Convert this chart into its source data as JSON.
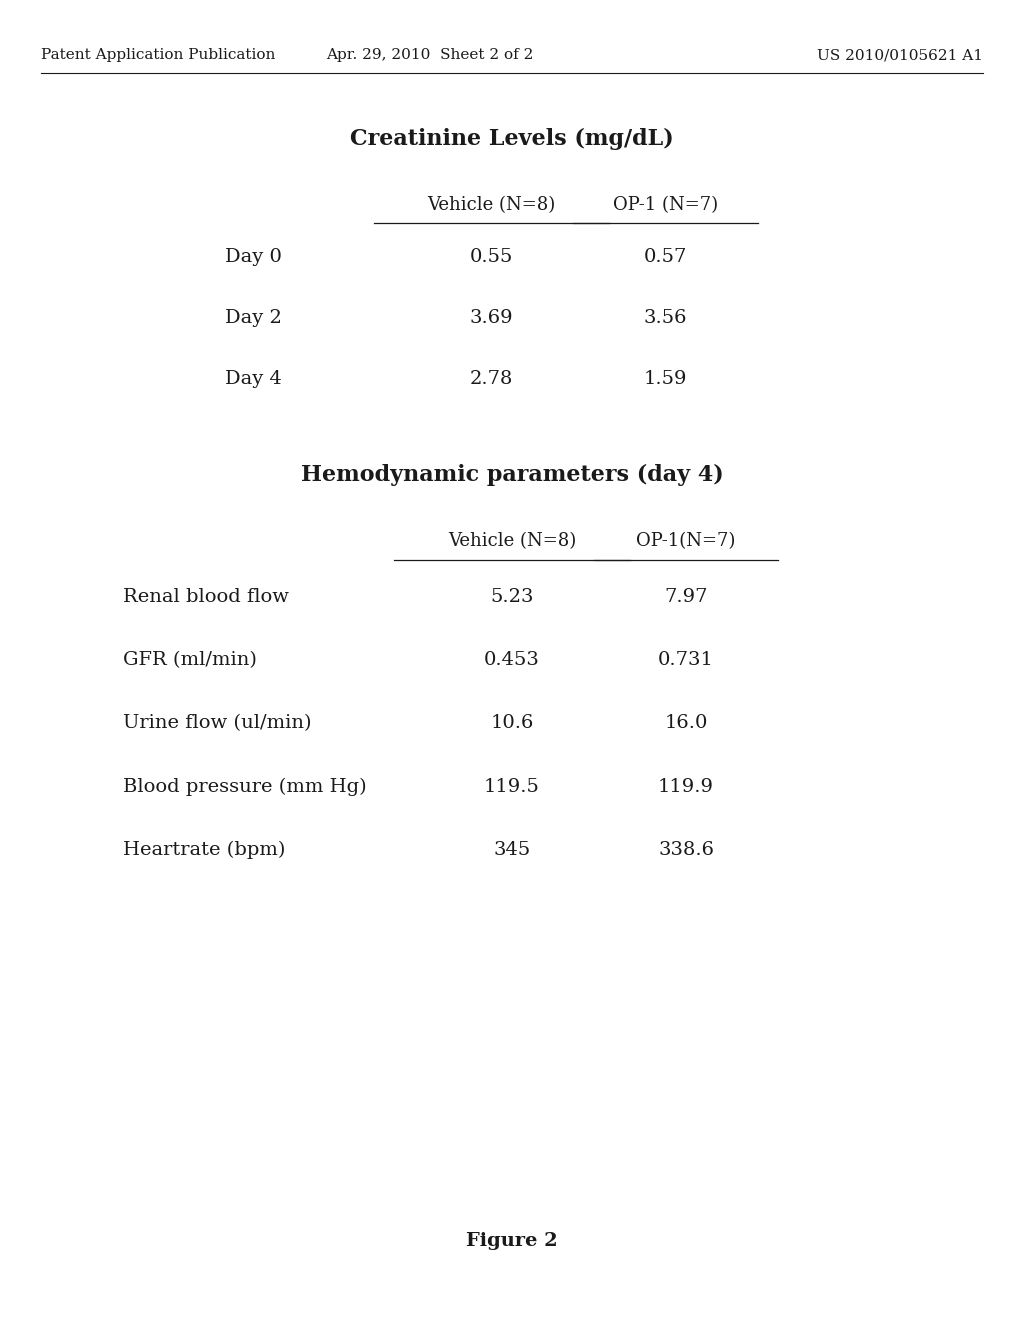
{
  "bg_color": "#ffffff",
  "header_left": "Patent Application Publication",
  "header_mid": "Apr. 29, 2010  Sheet 2 of 2",
  "header_right": "US 2010/0105621 A1",
  "header_fontsize": 11,
  "table1_title": "Creatinine Levels (mg/dL)",
  "table1_title_fontsize": 16,
  "table1_col1_header": "Vehicle (N=8)",
  "table1_col2_header": "OP-1 (N=7)",
  "table1_col_fontsize": 13,
  "table1_rows": [
    {
      "label": "Day 0",
      "v1": "0.55",
      "v2": "0.57"
    },
    {
      "label": "Day 2",
      "v1": "3.69",
      "v2": "3.56"
    },
    {
      "label": "Day 4",
      "v1": "2.78",
      "v2": "1.59"
    }
  ],
  "table1_data_fontsize": 14,
  "table2_title": "Hemodynamic parameters (day 4)",
  "table2_title_fontsize": 16,
  "table2_col1_header": "Vehicle (N=8)",
  "table2_col2_header": "OP-1(N=7)",
  "table2_col_fontsize": 13,
  "table2_rows": [
    {
      "label": "Renal blood flow",
      "v1": "5.23",
      "v2": "7.97"
    },
    {
      "label": "GFR (ml/min)",
      "v1": "0.453",
      "v2": "0.731"
    },
    {
      "label": "Urine flow (ul/min)",
      "v1": "10.6",
      "v2": "16.0"
    },
    {
      "label": "Blood pressure (mm Hg)",
      "v1": "119.5",
      "v2": "119.9"
    },
    {
      "label": "Heartrate (bpm)",
      "v1": "345",
      "v2": "338.6"
    }
  ],
  "table2_data_fontsize": 14,
  "figure_label": "Figure 2",
  "figure_label_fontsize": 14,
  "text_color": "#1a1a1a"
}
